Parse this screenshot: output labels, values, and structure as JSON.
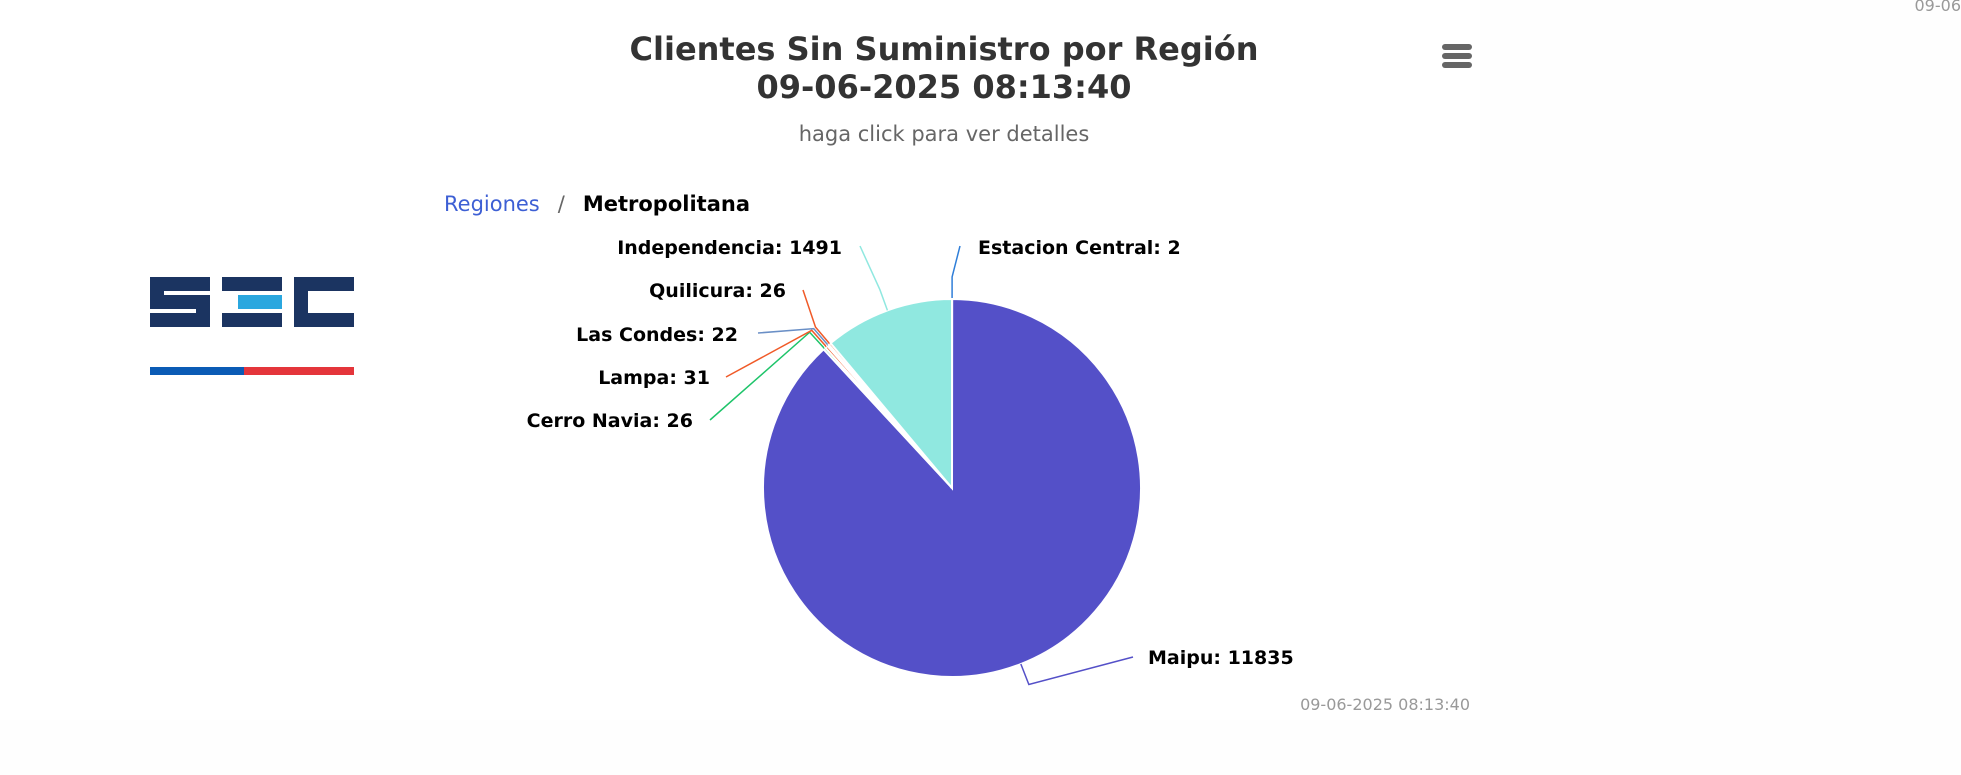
{
  "chart": {
    "title_line1": "Clientes Sin Suministro por Región",
    "title_line2": "09-06-2025 08:13:40",
    "subtitle": "haga click para ver detalles",
    "credits": "09-06-2025 08:13:40"
  },
  "corner_text": "09-06",
  "breadcrumb": {
    "root_label": "Regiones",
    "separator": "/",
    "current_label": "Metropolitana"
  },
  "menu": {
    "icon": "hamburger-menu-icon"
  },
  "logo": {
    "text": "SEC",
    "colors": [
      "#1b3461",
      "#2aa7df",
      "#0b5bb5",
      "#e4353b"
    ]
  },
  "chart_data": {
    "type": "pie",
    "title": "Clientes Sin Suministro por Región 09-06-2025 08:13:40",
    "subtitle": "haga click para ver detalles",
    "categories": [
      "Estacion Central",
      "Maipu",
      "Cerro Navia",
      "Lampa",
      "Las Condes",
      "Quilicura",
      "Independencia"
    ],
    "values": [
      2,
      11835,
      26,
      31,
      22,
      26,
      1491
    ],
    "colors": [
      "#2f7ed8",
      "#5450c8",
      "#1ec46a",
      "#f05a28",
      "#6a8fc6",
      "#f05a28",
      "#90e8e0"
    ],
    "labels": [
      "Estacion Central: 2",
      "Maipu: 11835",
      "Cerro Navia: 26",
      "Lampa: 31",
      "Las Condes: 22",
      "Quilicura: 26",
      "Independencia: 1491"
    ]
  }
}
